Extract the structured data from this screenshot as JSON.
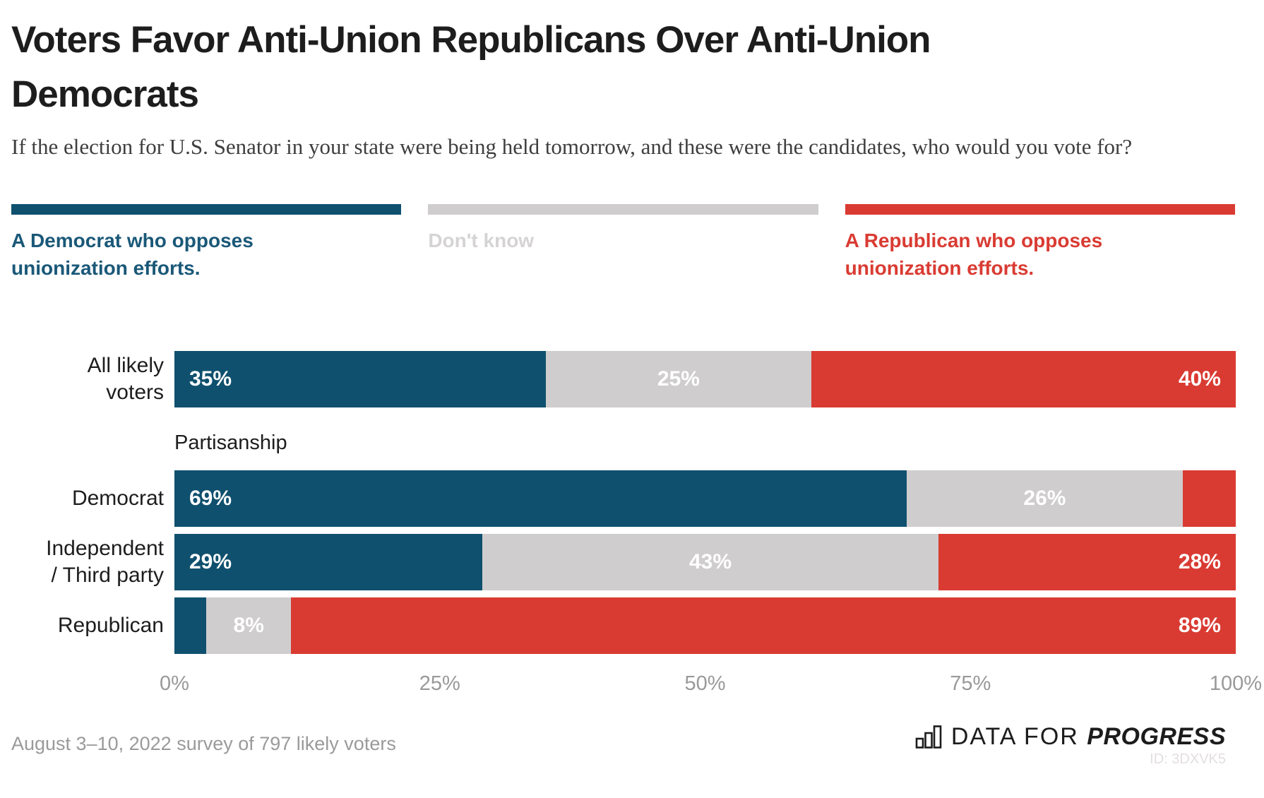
{
  "page": {
    "title": "Voters Favor Anti-Union Republicans Over Anti-Union Democrats",
    "subtitle": "If the election for U.S. Senator in your state were being held tomorrow, and these were the candidates, who would you vote for?",
    "survey_note": "August 3–10, 2022 survey of 797 likely voters",
    "chart_id": "ID: 3DXVK5",
    "logo": {
      "prefix": "DATA FOR",
      "suffix": "PROGRESS",
      "icon": "bar-chart-icon"
    }
  },
  "colors": {
    "title_text": "#1d1d1d",
    "subtitle_text": "#3e3e3e",
    "axis_text": "#9a999a",
    "footer_text": "#9b9a9b",
    "bar_value_text": "#ffffff",
    "chart_id_text": "#e4dfdf"
  },
  "chart_data": {
    "type": "bar",
    "orientation": "horizontal",
    "stacked": true,
    "section_header": "Partisanship",
    "x_axis": {
      "range": [
        0,
        100
      ],
      "ticks": [
        "0%",
        "25%",
        "50%",
        "75%",
        "100%"
      ],
      "tick_positions": [
        0,
        25,
        50,
        75,
        100
      ]
    },
    "series": [
      {
        "name": "A Democrat who opposes unionization efforts.",
        "color": "#0f506e",
        "label_color": "#1a5878"
      },
      {
        "name": "Don't know",
        "color": "#cfcdce",
        "label_color": "#d6d3d4"
      },
      {
        "name": "A Republican who opposes unionization efforts.",
        "color": "#d93b32",
        "label_color": "#d93b32"
      }
    ],
    "rows": [
      {
        "label": "All likely voters",
        "label_display": "All likely\nvoters",
        "group": "all",
        "values": [
          35,
          25,
          40
        ],
        "value_labels": [
          "35%",
          "25%",
          "40%"
        ]
      },
      {
        "label": "Democrat",
        "label_display": "Democrat",
        "group": "partisanship",
        "values": [
          69,
          26,
          5
        ],
        "value_labels": [
          "69%",
          "26%",
          ""
        ]
      },
      {
        "label": "Independent / Third party",
        "label_display": "Independent\n/ Third party",
        "group": "partisanship",
        "values": [
          29,
          43,
          28
        ],
        "value_labels": [
          "29%",
          "43%",
          "28%"
        ]
      },
      {
        "label": "Republican",
        "label_display": "Republican",
        "group": "partisanship",
        "values": [
          3,
          8,
          89
        ],
        "value_labels": [
          "",
          "8%",
          "89%"
        ]
      }
    ]
  }
}
